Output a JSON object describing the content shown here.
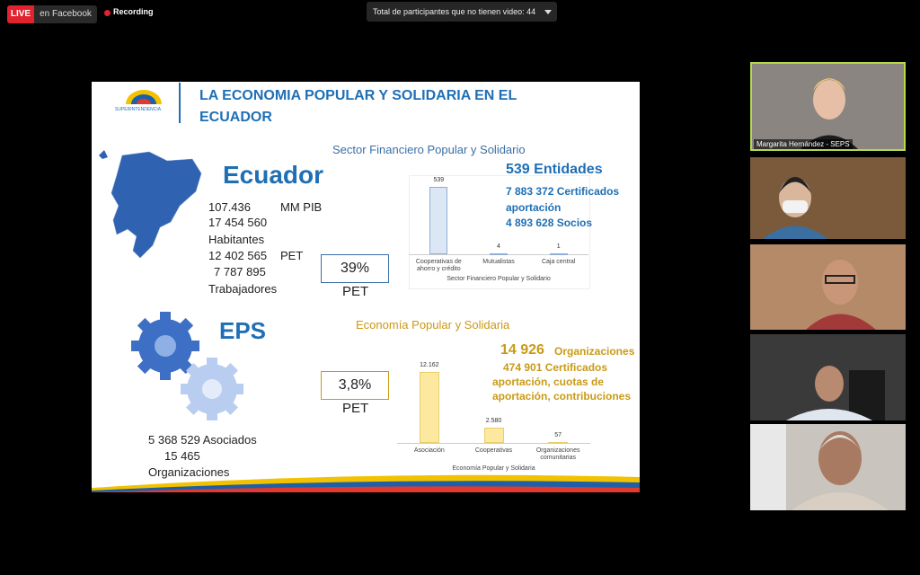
{
  "toolbar": {
    "live": "LIVE",
    "platform": "en Facebook",
    "recording": "Recording",
    "participants": "Total de participantes que no tienen video: 44"
  },
  "slide": {
    "title": "LA ECONOMIA POPULAR Y SOLIDARIA EN EL ECUADOR",
    "logo_text": "SUPERINTENDENCIA",
    "financial": {
      "heading": "Sector Financiero Popular y Solidario",
      "country": "Ecuador",
      "pib_value": "107.436",
      "pib_unit": "MM PIB",
      "population": "17 454 560",
      "population_label": "Habitantes",
      "pet_value": "12 402 565",
      "pet_unit": "PET",
      "workers": "7 787 895",
      "workers_label": "Trabajadores",
      "pet_box": "39%",
      "pet_label": "PET",
      "entities": "539 Entidades",
      "certificates": "7 883 372 Certificados aportación",
      "members": "4 893 628 Socios",
      "chart": {
        "type": "bar",
        "title": "Sector Financiero Popular y Solidario",
        "categories": [
          "Cooperativas de ahorro y crédito",
          "Mutualistas",
          "Caja central"
        ],
        "values": [
          539,
          4,
          1
        ],
        "color": "#dbe7f4"
      }
    },
    "eps": {
      "heading": "Economía Popular y Solidaria",
      "label": "EPS",
      "pet_box": "3,8%",
      "pet_label": "PET",
      "associates": "5 368 529 Asociados",
      "organizations_count": "15 465",
      "organizations_label": "Organizaciones",
      "org_total_number": "14 926",
      "org_total_label": "Organizaciones",
      "certificates": "474 901 Certificados",
      "contributions": "aportación, cuotas de aportación, contribuciones",
      "chart": {
        "type": "bar",
        "title": "Economía Popular y Solidaria",
        "categories": [
          "Asociación",
          "Cooperativas",
          "Organizaciones comunitarias"
        ],
        "values": [
          12162,
          2580,
          57
        ],
        "value_labels": [
          "12.162",
          "2.580",
          "57"
        ],
        "color": "#fde8a0"
      }
    }
  },
  "participants": {
    "speaker": "Margarita Hernández - SEPS"
  }
}
